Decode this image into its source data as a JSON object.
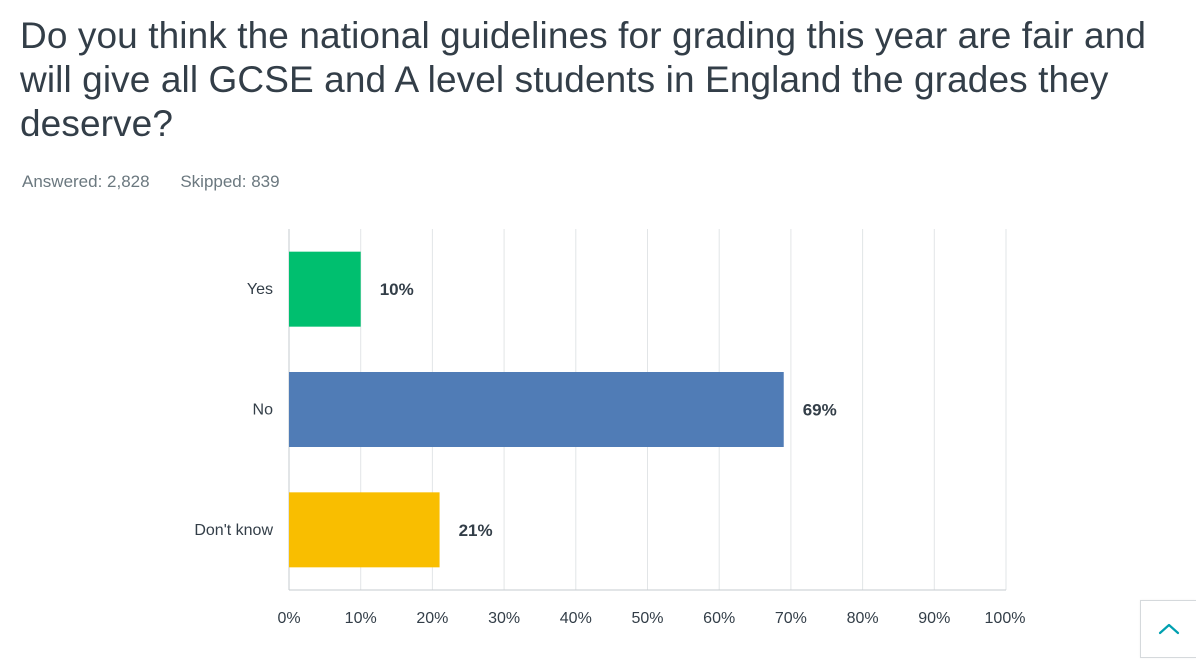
{
  "question": {
    "title": "Do you think the national guidelines for grading this year are fair and will give all GCSE and A level students in England the grades they deserve?"
  },
  "stats": {
    "answered_label": "Answered: 2,828",
    "skipped_label": "Skipped: 839"
  },
  "chart_data": {
    "type": "bar",
    "orientation": "horizontal",
    "categories": [
      "Yes",
      "No",
      "Don't know"
    ],
    "values": [
      10,
      69,
      21
    ],
    "value_labels": [
      "10%",
      "69%",
      "21%"
    ],
    "colors": [
      "#00bf6f",
      "#507cb6",
      "#f9be00"
    ],
    "xlim": [
      0,
      100
    ],
    "xticks": [
      "0%",
      "10%",
      "20%",
      "30%",
      "40%",
      "50%",
      "60%",
      "70%",
      "80%",
      "90%",
      "100%"
    ],
    "grid": true,
    "title": "",
    "xlabel": "",
    "ylabel": ""
  },
  "scroll_top": {
    "icon": "chevron-up-icon",
    "color": "#00a0b0"
  }
}
